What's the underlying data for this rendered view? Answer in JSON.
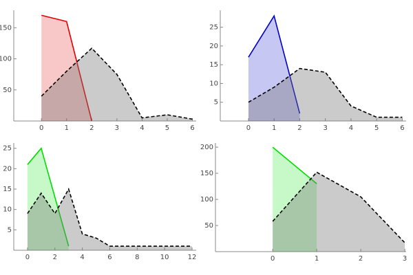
{
  "chart_data": [
    {
      "type": "line",
      "fill": "axis",
      "xlim": [
        -1.1,
        6.15
      ],
      "ylim": [
        0,
        178
      ],
      "xticks": [
        0,
        1,
        2,
        3,
        4,
        5,
        6
      ],
      "yticks": [
        50,
        100,
        150
      ],
      "x": [
        0,
        1,
        2,
        3,
        4,
        5,
        6
      ],
      "series": [
        {
          "color": "#e00000",
          "dashed": false,
          "values": [
            170,
            160,
            0,
            null,
            null,
            null,
            null
          ]
        },
        {
          "color": "#000000",
          "dashed": true,
          "values": [
            40,
            80,
            117,
            75,
            5,
            10,
            3
          ]
        }
      ]
    },
    {
      "type": "line",
      "fill": "axis",
      "xlim": [
        -1.1,
        6.15
      ],
      "ylim": [
        0,
        29.5
      ],
      "xticks": [
        0,
        1,
        2,
        3,
        4,
        5,
        6
      ],
      "yticks": [
        5,
        10,
        15,
        20,
        25
      ],
      "x": [
        0,
        1,
        2,
        3,
        4,
        5,
        6
      ],
      "series": [
        {
          "color": "#0000cc",
          "dashed": false,
          "values": [
            17,
            28,
            2,
            null,
            null,
            null,
            null
          ]
        },
        {
          "color": "#000000",
          "dashed": true,
          "values": [
            5,
            9,
            14,
            13,
            4,
            1,
            1
          ]
        }
      ]
    },
    {
      "type": "line",
      "fill": "axis",
      "xlim": [
        -1,
        12.3
      ],
      "ylim": [
        0,
        26.3
      ],
      "xticks": [
        0,
        2,
        4,
        6,
        8,
        10,
        12
      ],
      "yticks": [
        5,
        10,
        15,
        20,
        25
      ],
      "x": [
        0,
        1,
        2,
        3,
        4,
        5,
        6,
        7,
        8,
        9,
        10,
        11,
        12
      ],
      "series": [
        {
          "color": "#00dd00",
          "dashed": false,
          "values": [
            21,
            25,
            13,
            1,
            null,
            null,
            null,
            null,
            null,
            null,
            null,
            null,
            null
          ]
        },
        {
          "color": "#000000",
          "dashed": true,
          "values": [
            9,
            14,
            9,
            15,
            4,
            3,
            1,
            1,
            1,
            1,
            1,
            1,
            1
          ]
        }
      ]
    },
    {
      "type": "line",
      "fill": "axis",
      "xlim": [
        -1.3,
        3.03
      ],
      "ylim": [
        0,
        208
      ],
      "xticks": [
        0,
        1,
        2,
        3
      ],
      "yticks": [
        50,
        100,
        150,
        200
      ],
      "x": [
        0,
        1,
        2,
        3
      ],
      "series": [
        {
          "color": "#00dd00",
          "dashed": false,
          "values": [
            200,
            130,
            null,
            null
          ]
        },
        {
          "color": "#000000",
          "dashed": true,
          "values": [
            58,
            152,
            105,
            17
          ]
        }
      ]
    }
  ]
}
